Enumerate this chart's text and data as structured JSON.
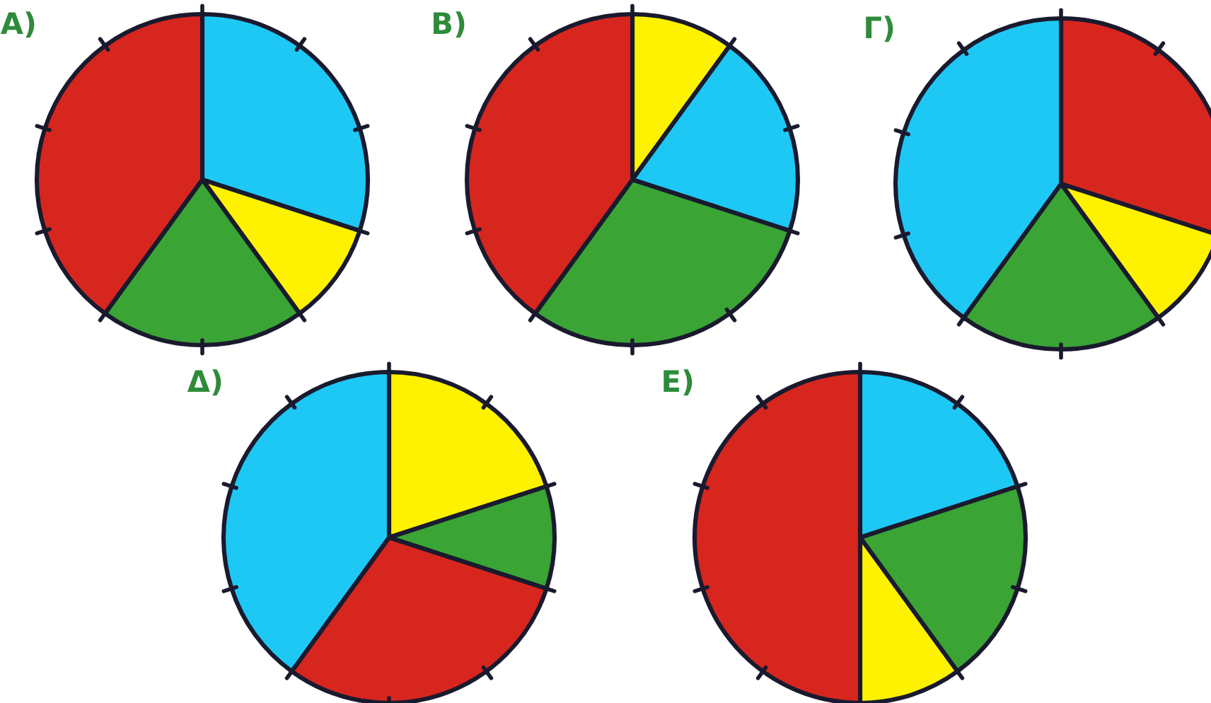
{
  "chart_data": [
    {
      "type": "pie",
      "title": "A)",
      "categories": [
        null,
        null,
        null,
        null
      ],
      "values": [
        30,
        10,
        20,
        40
      ],
      "colors": [
        "#1ec8f5",
        "#fff200",
        "#3aa535",
        "#d7261e"
      ]
    },
    {
      "type": "pie",
      "title": "B)",
      "categories": [
        null,
        null,
        null,
        null
      ],
      "values": [
        10,
        20,
        30,
        40
      ],
      "colors": [
        "#fff200",
        "#1ec8f5",
        "#3aa535",
        "#d7261e"
      ]
    },
    {
      "type": "pie",
      "title": "Γ)",
      "categories": [
        null,
        null,
        null,
        null
      ],
      "values": [
        30,
        10,
        20,
        40
      ],
      "colors": [
        "#d7261e",
        "#fff200",
        "#3aa535",
        "#1ec8f5"
      ]
    },
    {
      "type": "pie",
      "title": "Δ)",
      "categories": [
        null,
        null,
        null,
        null
      ],
      "values": [
        20,
        10,
        30,
        40
      ],
      "colors": [
        "#fff200",
        "#3aa535",
        "#d7261e",
        "#1ec8f5"
      ]
    },
    {
      "type": "pie",
      "title": "E)",
      "categories": [
        null,
        null,
        null,
        null
      ],
      "values": [
        20,
        20,
        10,
        50
      ],
      "colors": [
        "#1ec8f5",
        "#3aa535",
        "#fff200",
        "#d7261e"
      ]
    }
  ]
}
